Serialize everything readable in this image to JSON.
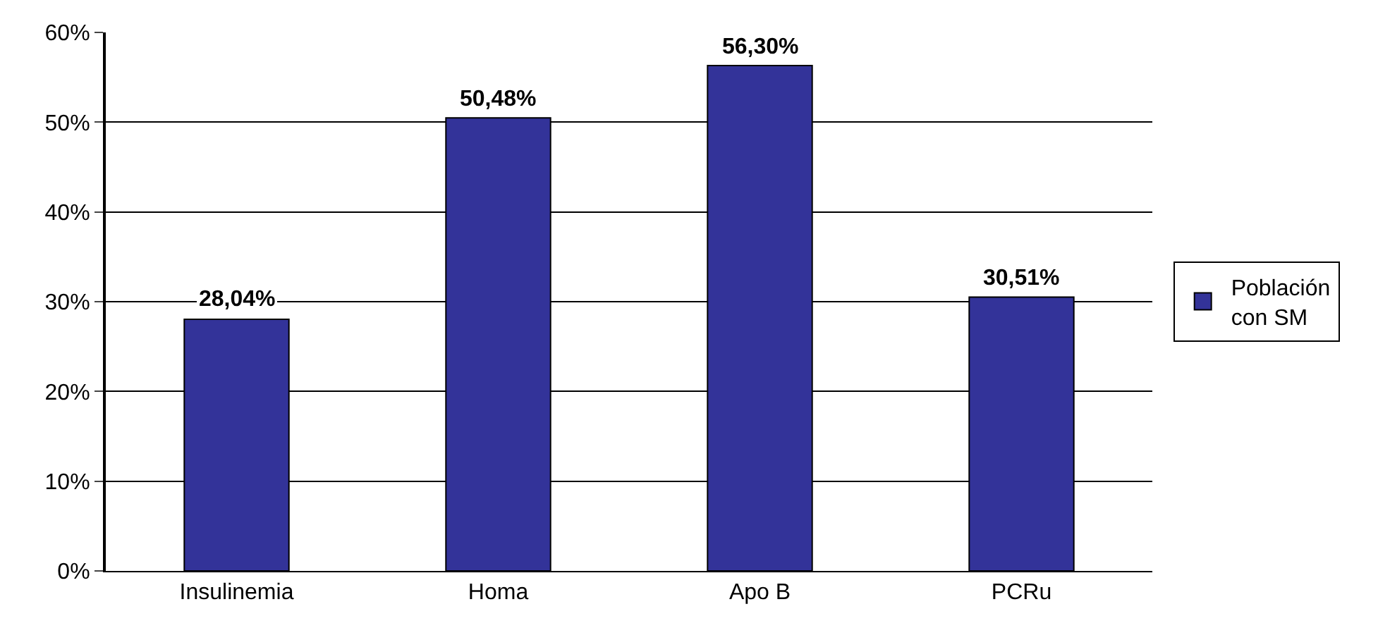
{
  "chart_data": {
    "type": "bar",
    "categories": [
      "Insulinemia",
      "Homa",
      "Apo B",
      "PCRu"
    ],
    "series": [
      {
        "name": "Población con SM",
        "color": "#333399",
        "values": [
          28.04,
          50.48,
          56.3,
          30.51
        ],
        "value_labels": [
          "28,04%",
          "50,48%",
          "56,30%",
          "30,51%"
        ]
      }
    ],
    "ylim": [
      0,
      60
    ],
    "yticks": [
      {
        "value": 0,
        "label": "0%"
      },
      {
        "value": 10,
        "label": "10%"
      },
      {
        "value": 20,
        "label": "20%"
      },
      {
        "value": 30,
        "label": "30%"
      },
      {
        "value": 40,
        "label": "40%"
      },
      {
        "value": 50,
        "label": "50%"
      },
      {
        "value": 60,
        "label": "60%"
      }
    ],
    "grid": "y",
    "legend": "right"
  }
}
